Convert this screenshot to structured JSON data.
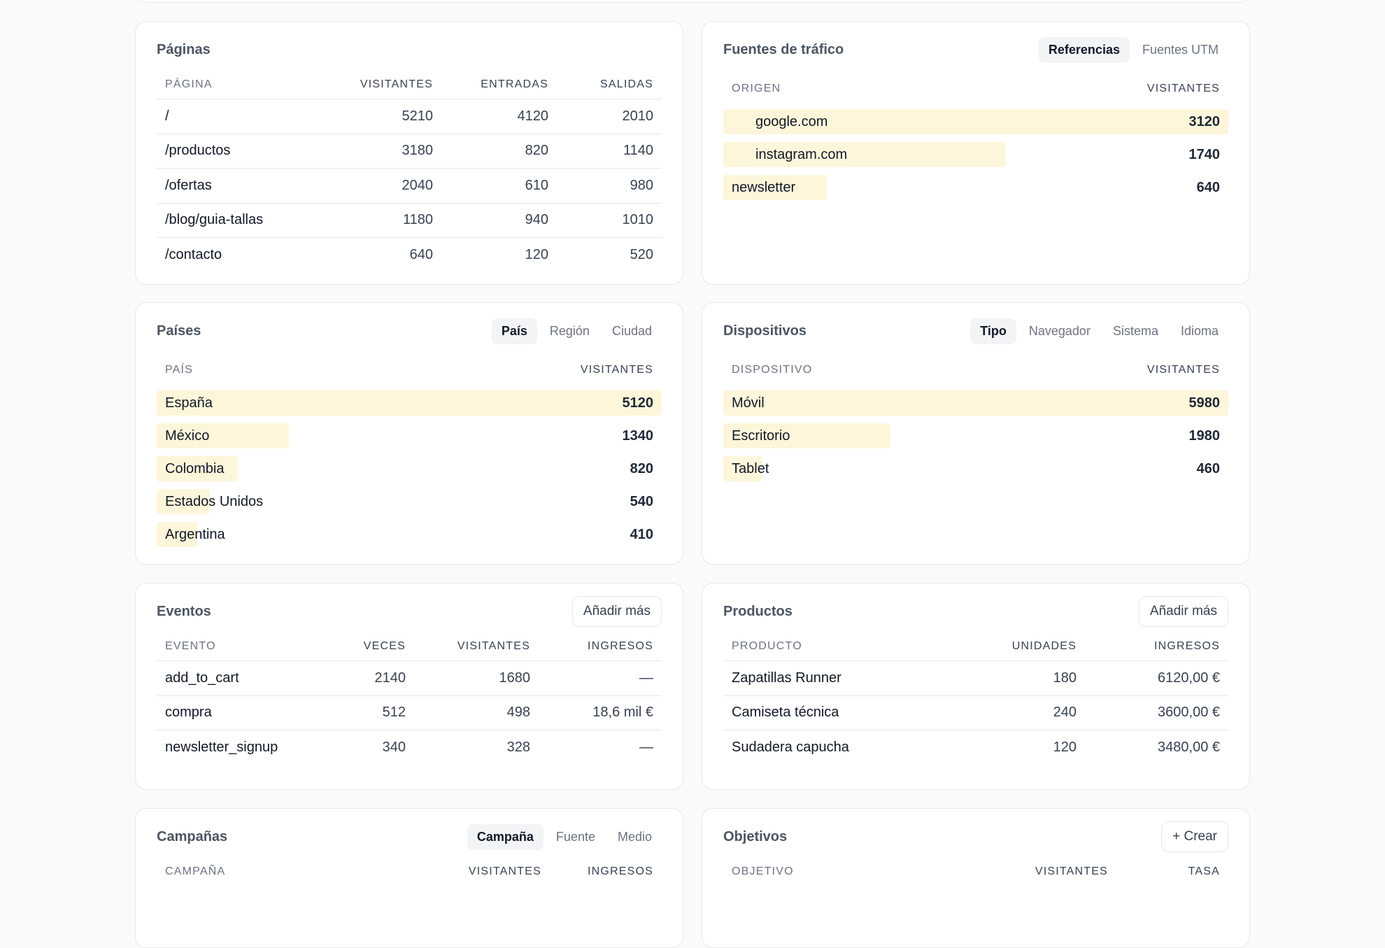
{
  "panels": [
    {
      "title": "Páginas",
      "columns": [
        "PÁGINA",
        "VISITANTES",
        "ENTRADAS",
        "SALIDAS"
      ],
      "rows": [
        [
          "/",
          5210,
          4120,
          2010
        ],
        [
          "/productos",
          3180,
          820,
          1140
        ],
        [
          "/ofertas",
          2040,
          610,
          980
        ],
        [
          "/blog/guia-tallas",
          1180,
          940,
          1010
        ],
        [
          "/contacto",
          640,
          120,
          520
        ]
      ]
    },
    {
      "title": "Fuentes de tráfico",
      "tabs": [
        "Referencias",
        "Fuentes UTM"
      ],
      "active_tab": 0,
      "bars": true,
      "columns": [
        "ORIGEN",
        "VISITANTES"
      ],
      "rows": [
        [
          "google.com",
          3120
        ],
        [
          "instagram.com",
          1740
        ],
        [
          "newsletter",
          640
        ]
      ]
    },
    {
      "title": "Países",
      "tabs": [
        "País",
        "Región",
        "Ciudad"
      ],
      "active_tab": 0,
      "bars": true,
      "columns": [
        "PAÍS",
        "VISITANTES"
      ],
      "rows": [
        [
          "España",
          5120
        ],
        [
          "México",
          1340
        ],
        [
          "Colombia",
          820
        ],
        [
          "Estados Unidos",
          540
        ],
        [
          "Argentina",
          410
        ]
      ]
    },
    {
      "title": "Dispositivos",
      "tabs": [
        "Tipo",
        "Navegador",
        "Sistema",
        "Idioma"
      ],
      "active_tab": 0,
      "bars": true,
      "columns": [
        "DISPOSITIVO",
        "VISITANTES"
      ],
      "rows": [
        [
          "Móvil",
          5980
        ],
        [
          "Escritorio",
          1980
        ],
        [
          "Tablet",
          460
        ]
      ]
    },
    {
      "title": "Eventos",
      "button": "Añadir más",
      "columns": [
        "EVENTO",
        "VECES",
        "VISITANTES",
        "INGRESOS"
      ],
      "rows": [
        [
          "add_to_cart",
          2140,
          1680,
          "—"
        ],
        [
          "compra",
          512,
          498,
          "18,6 mil €"
        ],
        [
          "newsletter_signup",
          340,
          328,
          "—"
        ]
      ]
    },
    {
      "title": "Productos",
      "button": "Añadir más",
      "columns": [
        "PRODUCTO",
        "UNIDADES",
        "INGRESOS"
      ],
      "rows": [
        [
          "Zapatillas Runner",
          180,
          "6120,00 €"
        ],
        [
          "Camiseta técnica",
          240,
          "3600,00 €"
        ],
        [
          "Sudadera capucha",
          120,
          "3480,00 €"
        ]
      ]
    },
    {
      "title": "Campañas",
      "tabs": [
        "Campaña",
        "Fuente",
        "Medio"
      ],
      "active_tab": 0,
      "columns": [
        "CAMPAÑA",
        "VISITANTES",
        "INGRESOS"
      ],
      "rows": []
    },
    {
      "title": "Objetivos",
      "button": "+ Crear",
      "columns": [
        "OBJETIVO",
        "VISITANTES",
        "TASA"
      ],
      "rows": []
    }
  ]
}
